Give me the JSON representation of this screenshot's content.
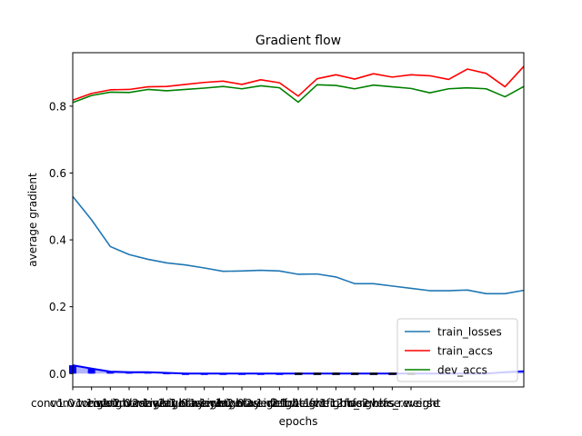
{
  "chart_data": {
    "type": "line",
    "title": "Gradient flow",
    "xlabel": "epochs",
    "ylabel": "average gradient",
    "xlim": [
      0,
      24
    ],
    "ylim": [
      -0.04,
      0.96
    ],
    "y_ticks": [
      0.0,
      0.2,
      0.4,
      0.6,
      0.8
    ],
    "y_tick_labels": [
      "0.0",
      "0.2",
      "0.4",
      "0.6",
      "0.8"
    ],
    "x_tick_labels": [
      "conv1.0.weight",
      "conv1.1.weight",
      "conv1.1.bias",
      "conv2.0.weight",
      "conv2.1.weight",
      "conv2.1.bias",
      "layer1.0.weight",
      "layer1.1.weight",
      "layer1.1.bias",
      "layer2.0.weight",
      "layer2.1.weight",
      "layer2.1.bias",
      "fc1.weight",
      "fc1.1.weight",
      "fc1.1.bias",
      "fc2.weight",
      "fc2.bias",
      "fc_reverse.weight",
      "fc_reverse"
    ],
    "legend": "lower-right",
    "series": [
      {
        "name": "train_losses",
        "color": "#1f77b4",
        "values": [
          0.53,
          0.46,
          0.38,
          0.356,
          0.342,
          0.331,
          0.325,
          0.316,
          0.306,
          0.307,
          0.309,
          0.307,
          0.297,
          0.298,
          0.289,
          0.269,
          0.269,
          0.262,
          0.255,
          0.248,
          0.248,
          0.25,
          0.239,
          0.239,
          0.249
        ]
      },
      {
        "name": "train_accs",
        "color": "#ff0000",
        "values": [
          0.818,
          0.838,
          0.849,
          0.85,
          0.858,
          0.859,
          0.865,
          0.871,
          0.875,
          0.865,
          0.879,
          0.87,
          0.83,
          0.882,
          0.894,
          0.881,
          0.897,
          0.887,
          0.894,
          0.891,
          0.88,
          0.911,
          0.898,
          0.858,
          0.919
        ]
      },
      {
        "name": "dev_accs",
        "color": "#008000",
        "values": [
          0.811,
          0.832,
          0.842,
          0.841,
          0.85,
          0.846,
          0.85,
          0.854,
          0.859,
          0.852,
          0.861,
          0.855,
          0.812,
          0.864,
          0.862,
          0.852,
          0.863,
          0.858,
          0.853,
          0.84,
          0.852,
          0.855,
          0.852,
          0.828,
          0.859
        ]
      }
    ],
    "gradient_bars": {
      "max_color": "#0000ff",
      "mean_color": "#000000",
      "max_values": [
        0.025,
        0.015,
        0.006,
        0.004,
        0.004,
        0.002,
        0.0,
        0.0,
        0.0,
        0.0,
        0.0,
        0.0,
        0.0,
        0.0,
        0.0,
        0.0,
        0.0,
        0.0,
        0.0,
        0.0,
        0.0,
        0.0,
        0.0,
        0.004,
        0.007
      ],
      "mean_values": [
        0.01,
        0.005,
        0.002,
        0.001,
        0.0,
        0.0,
        0.0,
        0.0,
        0.0,
        0.0,
        0.0,
        0.0,
        0.0,
        0.0,
        0.0,
        0.0,
        0.0,
        0.0,
        0.0,
        0.0,
        0.0,
        0.0,
        0.0,
        0.0,
        0.0
      ]
    }
  }
}
